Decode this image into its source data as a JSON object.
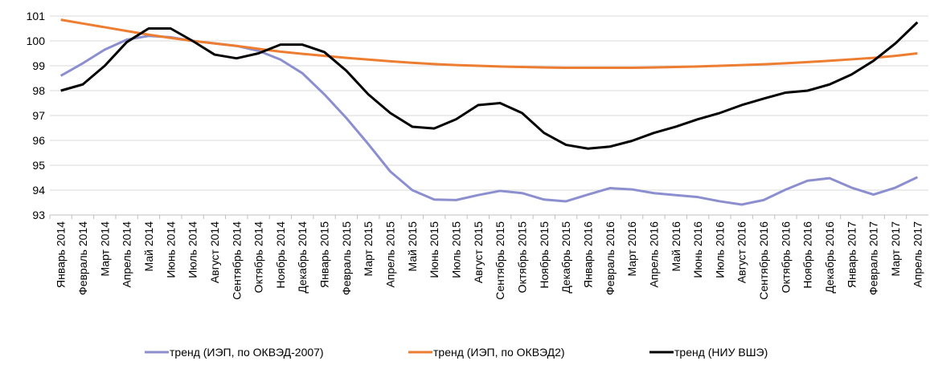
{
  "chart_data": {
    "type": "line",
    "categories": [
      "Январь 2014",
      "Февраль 2014",
      "Март 2014",
      "Апрель 2014",
      "Май 2014",
      "Июнь 2014",
      "Июль 2014",
      "Август 2014",
      "Сентябрь 2014",
      "Октябрь 2014",
      "Ноябрь 2014",
      "Декабрь 2014",
      "Январь 2015",
      "Февраль 2015",
      "Март 2015",
      "Апрель 2015",
      "Май 2015",
      "Июнь 2015",
      "Июль 2015",
      "Август 2015",
      "Сентябрь 2015",
      "Октябрь 2015",
      "Ноябрь 2015",
      "Декабрь 2015",
      "Январь 2016",
      "Февраль 2016",
      "Март 2016",
      "Апрель 2016",
      "Май 2016",
      "Июнь 2016",
      "Июль 2016",
      "Август 2016",
      "Сентябрь 2016",
      "Октябрь 2016",
      "Ноябрь 2016",
      "Декабрь 2016",
      "Январь 2017",
      "Февраль 2017",
      "Март 2017",
      "Апрель 2017"
    ],
    "series": [
      {
        "name": "тренд (ИЭП, по ОКВЭД-2007)",
        "color": "#8c8fcf",
        "values": [
          98.6,
          99.1,
          99.65,
          100.05,
          100.2,
          100.15,
          100.0,
          99.9,
          99.8,
          99.6,
          99.25,
          98.7,
          97.85,
          96.9,
          95.85,
          94.75,
          94.0,
          93.62,
          93.6,
          93.8,
          93.97,
          93.88,
          93.62,
          93.55,
          93.82,
          94.08,
          94.03,
          93.88,
          93.8,
          93.72,
          93.55,
          93.42,
          93.6,
          94.02,
          94.38,
          94.48,
          94.1,
          93.82,
          94.1,
          94.52
        ]
      },
      {
        "name": "тренд (ИЭП, по ОКВЭД2)",
        "color": "#ed7d31",
        "values": [
          100.85,
          100.7,
          100.55,
          100.4,
          100.25,
          100.12,
          100.0,
          99.9,
          99.8,
          99.68,
          99.57,
          99.48,
          99.4,
          99.32,
          99.25,
          99.18,
          99.12,
          99.07,
          99.03,
          99.0,
          98.97,
          98.95,
          98.93,
          98.92,
          98.92,
          98.92,
          98.92,
          98.93,
          98.95,
          98.97,
          99.0,
          99.03,
          99.06,
          99.1,
          99.15,
          99.2,
          99.26,
          99.32,
          99.4,
          99.5
        ]
      },
      {
        "name": "тренд (НИУ ВШЭ)",
        "color": "#000000",
        "values": [
          98.0,
          98.25,
          99.0,
          99.95,
          100.5,
          100.5,
          100.0,
          99.45,
          99.3,
          99.5,
          99.85,
          99.85,
          99.55,
          98.8,
          97.85,
          97.1,
          96.55,
          96.48,
          96.85,
          97.42,
          97.5,
          97.1,
          96.3,
          95.82,
          95.67,
          95.75,
          95.98,
          96.3,
          96.55,
          96.85,
          97.1,
          97.42,
          97.68,
          97.92,
          98.0,
          98.25,
          98.65,
          99.2,
          99.9,
          100.75
        ]
      }
    ],
    "ylim": [
      93,
      101
    ],
    "yticks": [
      93,
      94,
      95,
      96,
      97,
      98,
      99,
      100,
      101
    ],
    "grid": true,
    "legend": "bottom"
  }
}
